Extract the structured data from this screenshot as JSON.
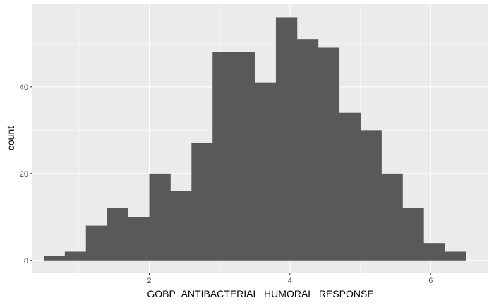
{
  "chart_data": {
    "type": "bar",
    "xlabel": "GOBP_ANTIBACTERIAL_HUMORAL_RESPONSE",
    "ylabel": "count",
    "xlim": [
      0.34,
      6.82
    ],
    "ylim": [
      -2.8,
      59
    ],
    "x_ticks": [
      2,
      4,
      6
    ],
    "x_minor_ticks": [
      1,
      3,
      5
    ],
    "y_ticks": [
      0,
      20,
      40
    ],
    "y_minor_ticks": [
      10,
      30,
      50
    ],
    "bin_start": 0.5,
    "bin_width": 0.3,
    "counts": [
      1,
      2,
      8,
      12,
      10,
      20,
      16,
      27,
      48,
      48,
      41,
      56,
      51,
      49,
      34,
      30,
      20,
      12,
      4,
      2
    ],
    "grid": true,
    "colors": {
      "panel_background": "#ebebeb",
      "grid_major": "#ffffff",
      "bar_fill": "#595959"
    }
  }
}
